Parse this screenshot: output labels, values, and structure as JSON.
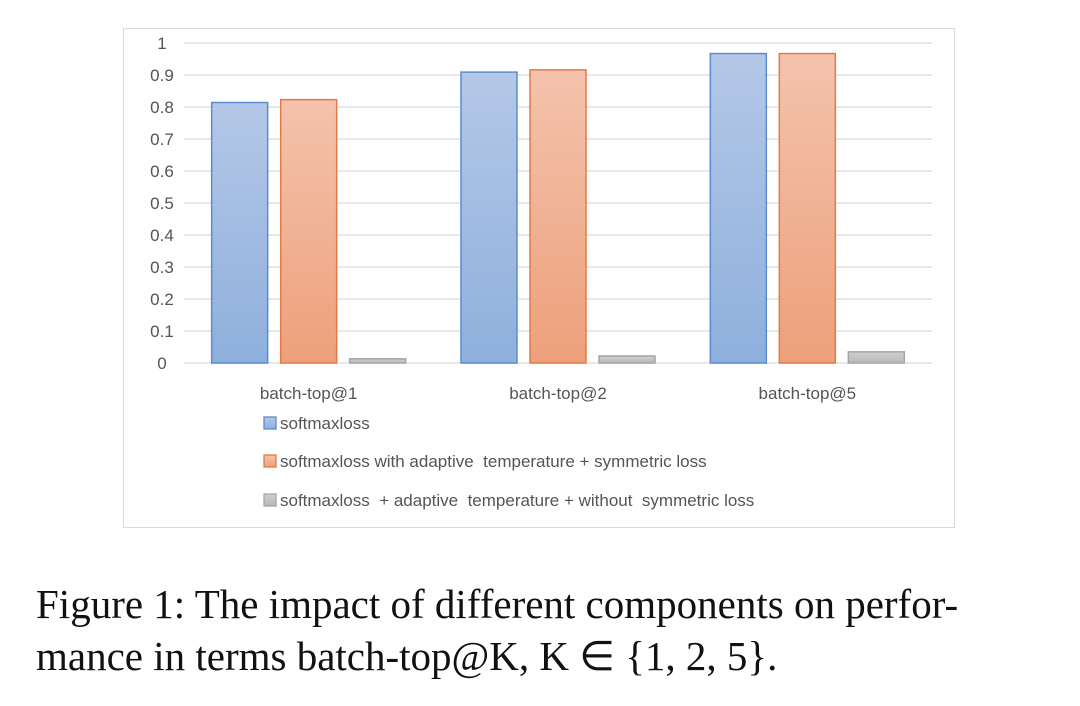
{
  "chart_data": {
    "type": "bar",
    "categories": [
      "batch-top@1",
      "batch-top@2",
      "batch-top@5"
    ],
    "series": [
      {
        "name": "softmaxloss",
        "values": [
          0.814,
          0.909,
          0.967
        ]
      },
      {
        "name": "softmaxloss with adaptive  temperature + symmetric loss",
        "values": [
          0.823,
          0.916,
          0.967
        ]
      },
      {
        "name": "softmaxloss  + adaptive  temperature + without  symmetric loss",
        "values": [
          0.013,
          0.022,
          0.035
        ]
      }
    ],
    "yticks": [
      "0",
      "0.1",
      "0.2",
      "0.3",
      "0.4",
      "0.5",
      "0.6",
      "0.7",
      "0.8",
      "0.9",
      "1"
    ],
    "ylim": [
      0,
      1
    ],
    "grid": true,
    "legend_position": "bottom",
    "colors": {
      "series_fill_top": [
        "#b4c7e7",
        "#f4c3ad",
        "#d0d0d0"
      ],
      "series_fill_bottom": [
        "#8eb0dd",
        "#eda07b",
        "#b8b8b8"
      ],
      "series_stroke": [
        "#5b8cd0",
        "#e27b45",
        "#a5a5a5"
      ],
      "grid": "#d9d9d9"
    }
  },
  "caption": {
    "line1": "Figure 1: The impact of different components on perfor-",
    "line2": "mance in terms batch-top@K, K ∈ {1, 2, 5}."
  }
}
